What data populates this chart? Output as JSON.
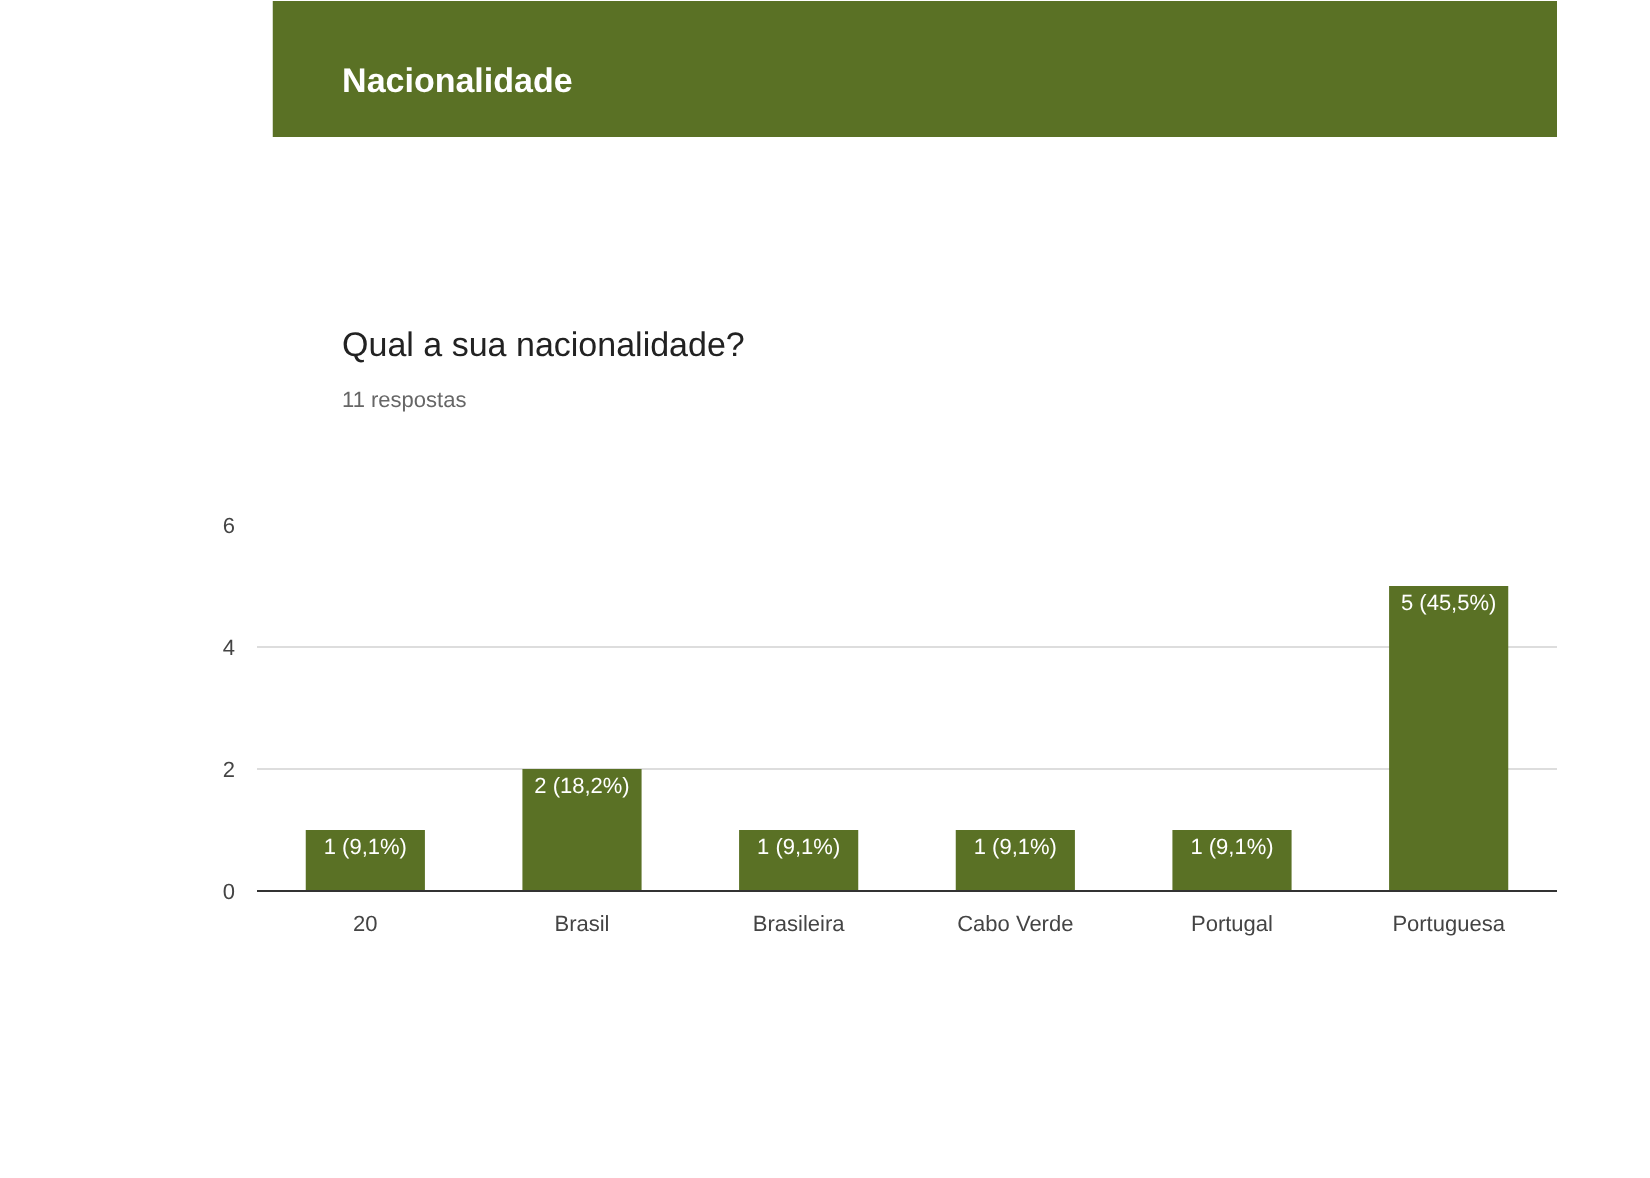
{
  "chart_data": {
    "type": "bar",
    "title": "Nacionalidade",
    "subtitle": "Qual a sua nacionalidade?",
    "annotations": [
      "11 respostas"
    ],
    "categories": [
      "20",
      "Brasil",
      "Brasileira",
      "Cabo Verde",
      "Portugal",
      "Portuguesa"
    ],
    "values": [
      1,
      2,
      1,
      1,
      1,
      5
    ],
    "value_labels": [
      "1 (9,1%)",
      "2 (18,2%)",
      "1 (9,1%)",
      "1 (9,1%)",
      "1 (9,1%)",
      "5 (45,5%)"
    ],
    "color": "#5a7125",
    "ylim": [
      0,
      6
    ],
    "yticks": [
      0,
      2,
      4,
      6
    ],
    "grid": "y"
  }
}
